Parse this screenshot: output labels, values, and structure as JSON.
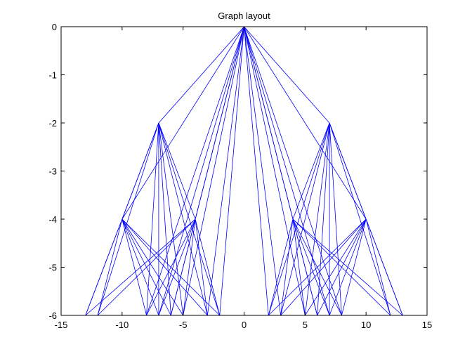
{
  "chart_data": {
    "type": "graph",
    "title": "Graph layout",
    "xlim": [
      -15,
      15
    ],
    "ylim": [
      -6,
      0
    ],
    "xticks": [
      "-15",
      "-10",
      "-5",
      "0",
      "5",
      "10",
      "15"
    ],
    "yticks": [
      "0",
      "-1",
      "-2",
      "-3",
      "-4",
      "-5",
      "-6"
    ],
    "grid": false,
    "edge_color": "#0000ff",
    "nodes": {
      "root": [
        0,
        0
      ],
      "level2": [
        [
          -7,
          -2
        ],
        [
          7,
          -2
        ]
      ],
      "level4": [
        [
          -10,
          -4
        ],
        [
          -4,
          -4
        ],
        [
          4,
          -4
        ],
        [
          10,
          -4
        ]
      ],
      "leaves": [
        [
          -13,
          -6
        ],
        [
          -12,
          -6
        ],
        [
          -8,
          -6
        ],
        [
          -7,
          -6
        ],
        [
          -6,
          -6
        ],
        [
          -5,
          -6
        ],
        [
          -3,
          -6
        ],
        [
          -2,
          -6
        ],
        [
          2,
          -6
        ],
        [
          3,
          -6
        ],
        [
          5,
          -6
        ],
        [
          6,
          -6
        ],
        [
          7,
          -6
        ],
        [
          8,
          -6
        ],
        [
          12,
          -6
        ],
        [
          13,
          -6
        ]
      ]
    },
    "edges": [
      [
        [
          0,
          0
        ],
        [
          -7,
          -2
        ]
      ],
      [
        [
          0,
          0
        ],
        [
          7,
          -2
        ]
      ],
      [
        [
          0,
          0
        ],
        [
          -10,
          -4
        ]
      ],
      [
        [
          0,
          0
        ],
        [
          -4,
          -4
        ]
      ],
      [
        [
          0,
          0
        ],
        [
          4,
          -4
        ]
      ],
      [
        [
          0,
          0
        ],
        [
          10,
          -4
        ]
      ],
      [
        [
          0,
          0
        ],
        [
          -8,
          -6
        ]
      ],
      [
        [
          0,
          0
        ],
        [
          -7,
          -6
        ]
      ],
      [
        [
          0,
          0
        ],
        [
          -6,
          -6
        ]
      ],
      [
        [
          0,
          0
        ],
        [
          -5,
          -6
        ]
      ],
      [
        [
          0,
          0
        ],
        [
          -3,
          -6
        ]
      ],
      [
        [
          0,
          0
        ],
        [
          -2,
          -6
        ]
      ],
      [
        [
          0,
          0
        ],
        [
          2,
          -6
        ]
      ],
      [
        [
          0,
          0
        ],
        [
          3,
          -6
        ]
      ],
      [
        [
          0,
          0
        ],
        [
          5,
          -6
        ]
      ],
      [
        [
          0,
          0
        ],
        [
          6,
          -6
        ]
      ],
      [
        [
          0,
          0
        ],
        [
          7,
          -6
        ]
      ],
      [
        [
          0,
          0
        ],
        [
          8,
          -6
        ]
      ],
      [
        [
          -7,
          -2
        ],
        [
          -10,
          -4
        ]
      ],
      [
        [
          -7,
          -2
        ],
        [
          -4,
          -4
        ]
      ],
      [
        [
          -7,
          -2
        ],
        [
          -13,
          -6
        ]
      ],
      [
        [
          -7,
          -2
        ],
        [
          -12,
          -6
        ]
      ],
      [
        [
          -7,
          -2
        ],
        [
          -8,
          -6
        ]
      ],
      [
        [
          -7,
          -2
        ],
        [
          -7,
          -6
        ]
      ],
      [
        [
          -7,
          -2
        ],
        [
          -6,
          -6
        ]
      ],
      [
        [
          -7,
          -2
        ],
        [
          -5,
          -6
        ]
      ],
      [
        [
          -7,
          -2
        ],
        [
          -3,
          -6
        ]
      ],
      [
        [
          -7,
          -2
        ],
        [
          -2,
          -6
        ]
      ],
      [
        [
          7,
          -2
        ],
        [
          4,
          -4
        ]
      ],
      [
        [
          7,
          -2
        ],
        [
          10,
          -4
        ]
      ],
      [
        [
          7,
          -2
        ],
        [
          2,
          -6
        ]
      ],
      [
        [
          7,
          -2
        ],
        [
          3,
          -6
        ]
      ],
      [
        [
          7,
          -2
        ],
        [
          5,
          -6
        ]
      ],
      [
        [
          7,
          -2
        ],
        [
          6,
          -6
        ]
      ],
      [
        [
          7,
          -2
        ],
        [
          7,
          -6
        ]
      ],
      [
        [
          7,
          -2
        ],
        [
          8,
          -6
        ]
      ],
      [
        [
          7,
          -2
        ],
        [
          12,
          -6
        ]
      ],
      [
        [
          7,
          -2
        ],
        [
          13,
          -6
        ]
      ],
      [
        [
          -10,
          -4
        ],
        [
          -13,
          -6
        ]
      ],
      [
        [
          -10,
          -4
        ],
        [
          -12,
          -6
        ]
      ],
      [
        [
          -10,
          -4
        ],
        [
          -8,
          -6
        ]
      ],
      [
        [
          -10,
          -4
        ],
        [
          -7,
          -6
        ]
      ],
      [
        [
          -10,
          -4
        ],
        [
          -6,
          -6
        ]
      ],
      [
        [
          -10,
          -4
        ],
        [
          -5,
          -6
        ]
      ],
      [
        [
          -10,
          -4
        ],
        [
          -3,
          -6
        ]
      ],
      [
        [
          -10,
          -4
        ],
        [
          -2,
          -6
        ]
      ],
      [
        [
          -4,
          -4
        ],
        [
          -13,
          -6
        ]
      ],
      [
        [
          -4,
          -4
        ],
        [
          -12,
          -6
        ]
      ],
      [
        [
          -4,
          -4
        ],
        [
          -8,
          -6
        ]
      ],
      [
        [
          -4,
          -4
        ],
        [
          -7,
          -6
        ]
      ],
      [
        [
          -4,
          -4
        ],
        [
          -6,
          -6
        ]
      ],
      [
        [
          -4,
          -4
        ],
        [
          -5,
          -6
        ]
      ],
      [
        [
          -4,
          -4
        ],
        [
          -3,
          -6
        ]
      ],
      [
        [
          -4,
          -4
        ],
        [
          -2,
          -6
        ]
      ],
      [
        [
          4,
          -4
        ],
        [
          2,
          -6
        ]
      ],
      [
        [
          4,
          -4
        ],
        [
          3,
          -6
        ]
      ],
      [
        [
          4,
          -4
        ],
        [
          5,
          -6
        ]
      ],
      [
        [
          4,
          -4
        ],
        [
          6,
          -6
        ]
      ],
      [
        [
          4,
          -4
        ],
        [
          7,
          -6
        ]
      ],
      [
        [
          4,
          -4
        ],
        [
          8,
          -6
        ]
      ],
      [
        [
          4,
          -4
        ],
        [
          12,
          -6
        ]
      ],
      [
        [
          4,
          -4
        ],
        [
          13,
          -6
        ]
      ],
      [
        [
          10,
          -4
        ],
        [
          2,
          -6
        ]
      ],
      [
        [
          10,
          -4
        ],
        [
          3,
          -6
        ]
      ],
      [
        [
          10,
          -4
        ],
        [
          5,
          -6
        ]
      ],
      [
        [
          10,
          -4
        ],
        [
          6,
          -6
        ]
      ],
      [
        [
          10,
          -4
        ],
        [
          7,
          -6
        ]
      ],
      [
        [
          10,
          -4
        ],
        [
          8,
          -6
        ]
      ],
      [
        [
          10,
          -4
        ],
        [
          12,
          -6
        ]
      ],
      [
        [
          10,
          -4
        ],
        [
          13,
          -6
        ]
      ]
    ]
  }
}
